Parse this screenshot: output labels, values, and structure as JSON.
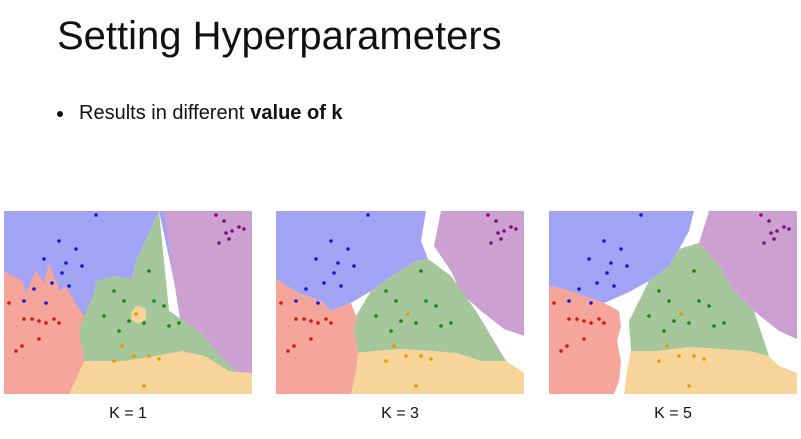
{
  "slide": {
    "title": "Setting Hyperparameters",
    "bullet_text": "Results in different",
    "bullet_bold": "value of k"
  },
  "colors": {
    "blue_region": "#a3a3f5",
    "purple_region": "#cda0d2",
    "green_region": "#a5c79b",
    "red_region": "#f6a59a",
    "orange_region": "#f6d49a",
    "blue_point": "#1515d6",
    "purple_point": "#7a0f7a",
    "green_point": "#118a11",
    "red_point": "#d61515",
    "orange_point": "#e39a00"
  },
  "panels": [
    {
      "caption": "K = 1"
    },
    {
      "caption": "K = 3"
    },
    {
      "caption": "K = 5"
    }
  ]
}
